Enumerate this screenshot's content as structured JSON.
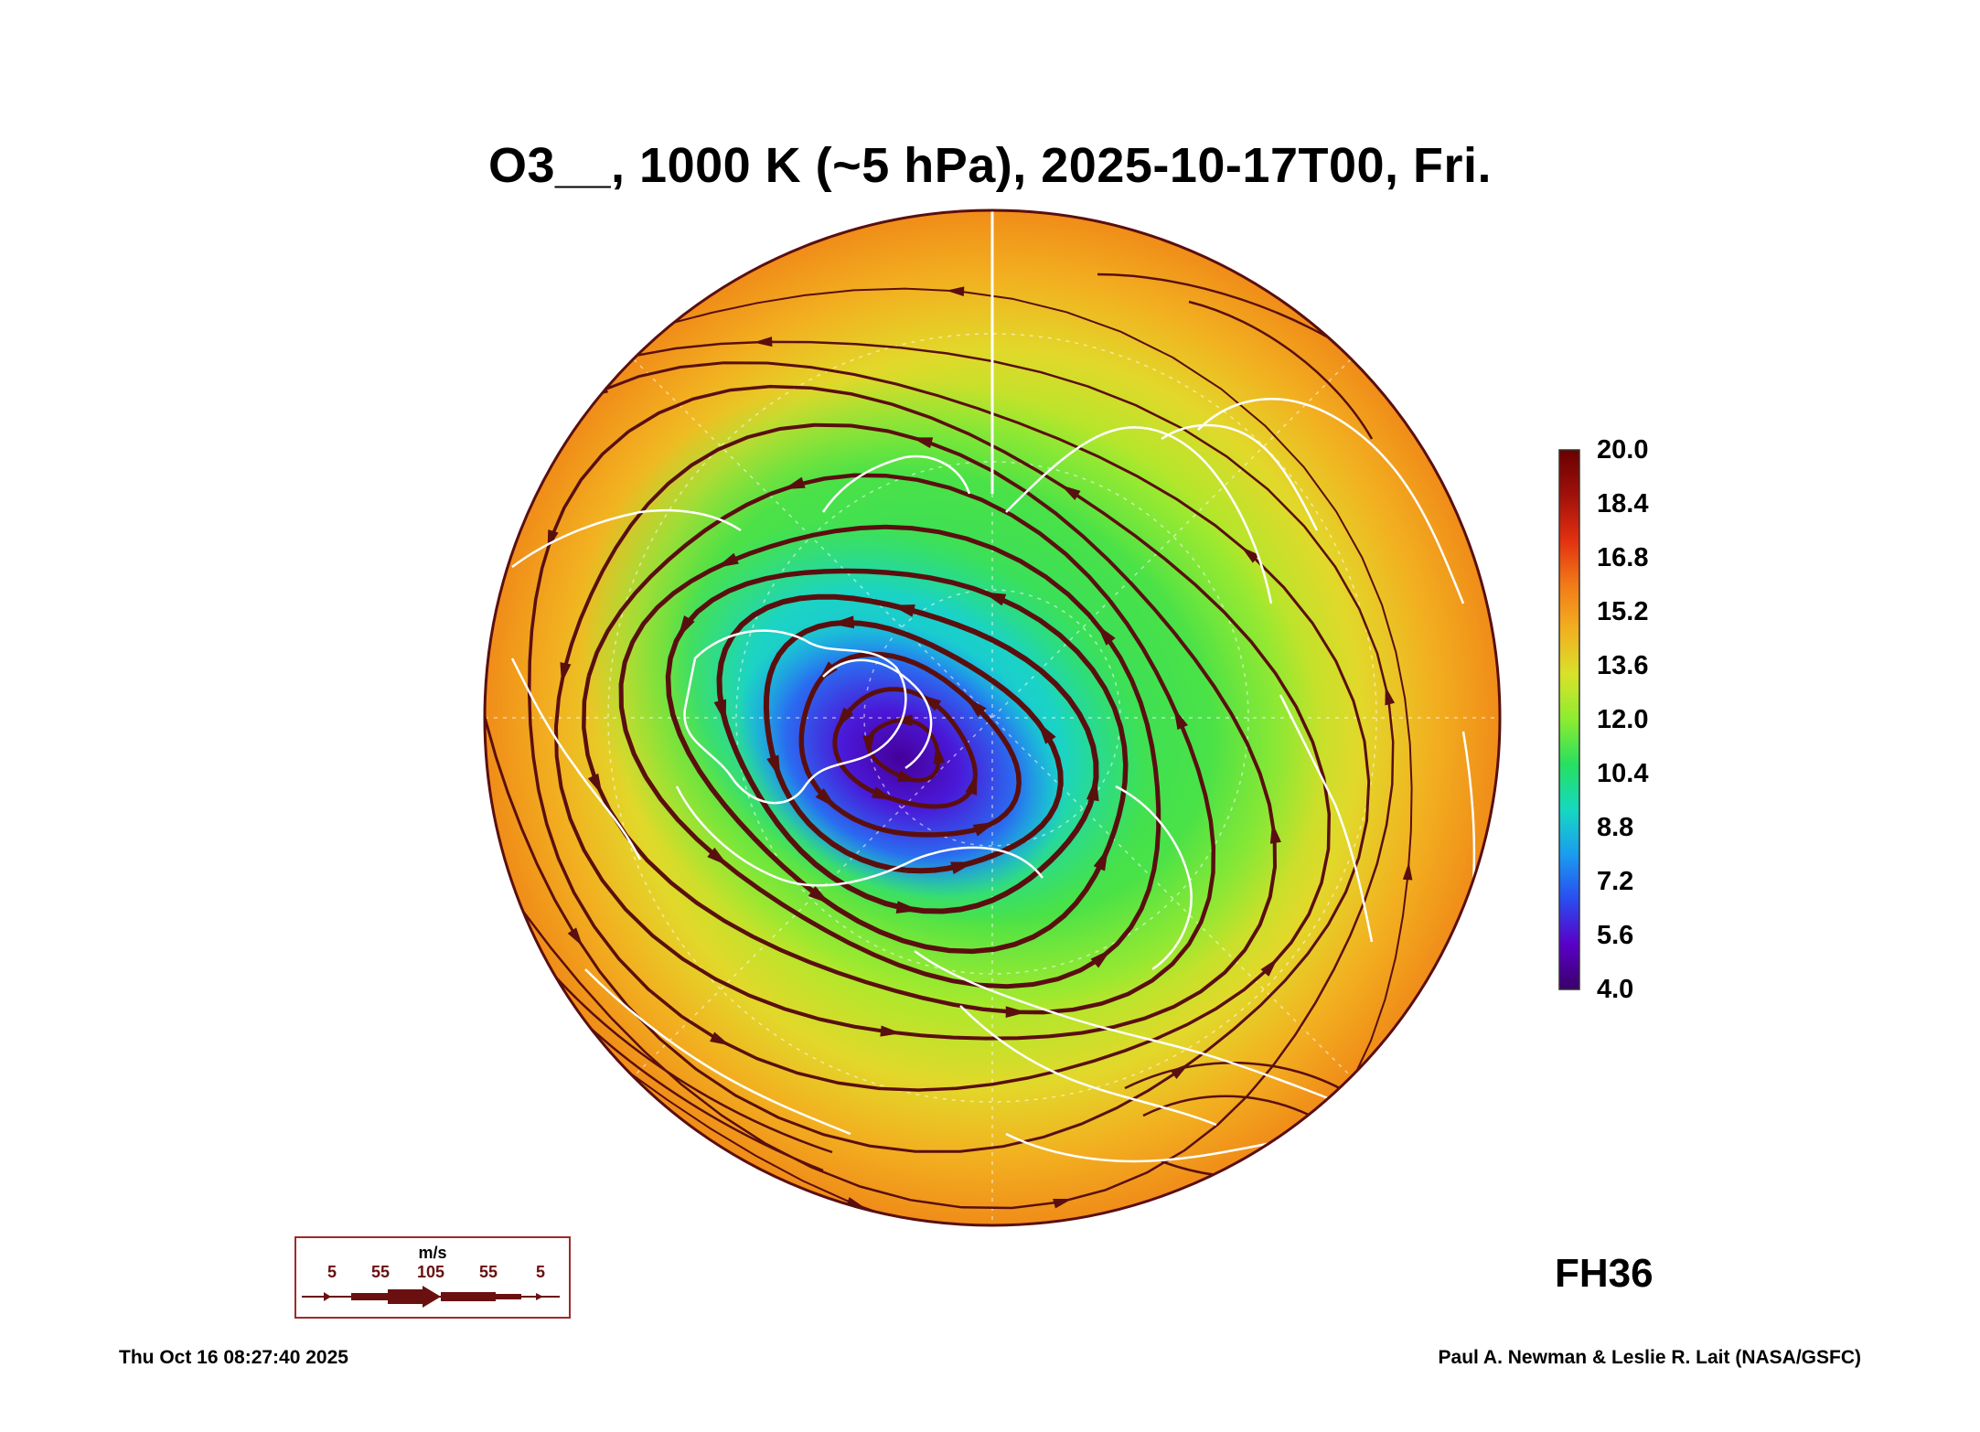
{
  "title": "O3__, 1000 K (~5 hPa), 2025-10-17T00, Fri.",
  "colorbar": {
    "labels": [
      "20.0",
      "18.4",
      "16.8",
      "15.2",
      "13.6",
      "12.0",
      "10.4",
      "8.8",
      "7.2",
      "5.6",
      "4.0"
    ],
    "min": 4.0,
    "max": 20.0,
    "colors": [
      "#3a006a",
      "#5a00c8",
      "#2a4cf0",
      "#1a9cf0",
      "#16d8c0",
      "#26e060",
      "#8cec30",
      "#d8e22a",
      "#f2b020",
      "#f27a18",
      "#e23010",
      "#a0100a",
      "#6a0000"
    ]
  },
  "forecast_hour": "FH36",
  "wind_legend": {
    "unit": "m/s",
    "ticks": [
      "5",
      "55",
      "105",
      "55",
      "5"
    ]
  },
  "timestamp": "Thu Oct 16 08:27:40 2025",
  "credit": "Paul A. Newman & Leslie R. Lait (NASA/GSFC)",
  "colors": {
    "streamline": "#5a0f0f",
    "coastline": "#ffffff",
    "legend_border": "#a02a2a"
  },
  "map": {
    "projection": "polar-stereographic",
    "hemisphere": "north",
    "vortex_minimum": 4.0
  }
}
